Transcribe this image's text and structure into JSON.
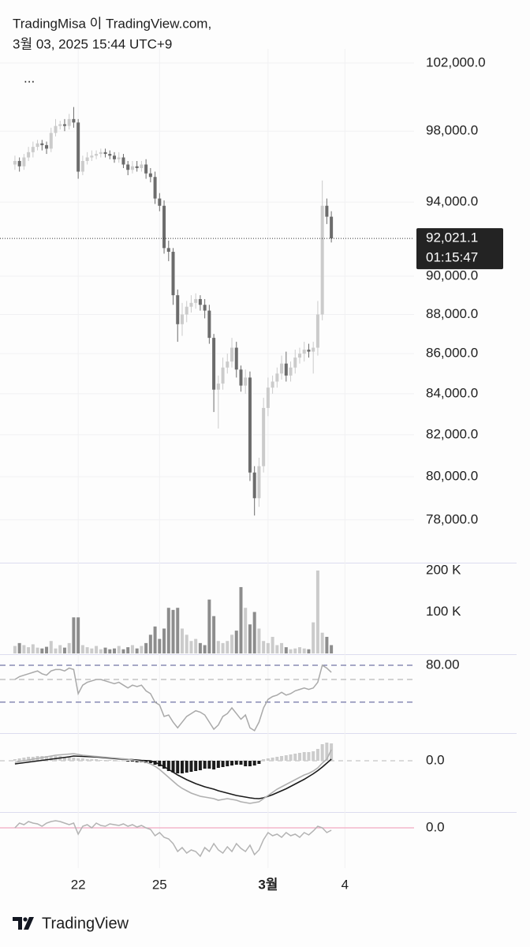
{
  "header": {
    "line1": "TradingMisa 이 TradingView.com,",
    "line2": "3월 03, 2025 15:44 UTC+9",
    "menu": "..."
  },
  "footer": {
    "logo": "TradingView"
  },
  "chart_data": [
    {
      "type": "candlestick",
      "log_scale": true,
      "up_color": "#cbcbcb",
      "down_color": "#6c6c6c",
      "grid_color": "#f1f1f3",
      "ylim": [
        76100,
        102850
      ],
      "yticks": [
        {
          "value": 78000,
          "label": "78,000.0"
        },
        {
          "value": 80000,
          "label": "80,000.0"
        },
        {
          "value": 82000,
          "label": "82,000.0"
        },
        {
          "value": 84000,
          "label": "84,000.0"
        },
        {
          "value": 86000,
          "label": "86,000.0"
        },
        {
          "value": 88000,
          "label": "88,000.0"
        },
        {
          "value": 90000,
          "label": "90,000.0"
        },
        {
          "value": 94000,
          "label": "94,000.0"
        },
        {
          "value": 98000,
          "label": "98,000.0"
        },
        {
          "value": 102000,
          "label": "102,000.0"
        }
      ],
      "xlim": [
        -3.3,
        88.3
      ],
      "xticks": [
        {
          "value": 14,
          "label": "22"
        },
        {
          "value": 32,
          "label": "25"
        },
        {
          "value": 56,
          "label": "3월"
        },
        {
          "value": 73,
          "label": "4"
        }
      ],
      "last_label": "92,021.1",
      "countdown": "01:15:47",
      "open": [
        96100,
        96300,
        96000,
        96500,
        96800,
        97100,
        97300,
        97200,
        97000,
        97900,
        98300,
        98400,
        98300,
        98700,
        98500,
        95700,
        96300,
        96500,
        96600,
        96700,
        96800,
        96700,
        96600,
        96400,
        96500,
        96100,
        95800,
        96000,
        95900,
        96100,
        95600,
        95400,
        94200,
        93800,
        91500,
        91300,
        89000,
        87500,
        88000,
        88400,
        88600,
        88800,
        88500,
        88200,
        86800,
        84200,
        84500,
        85300,
        85600,
        86300,
        85200,
        84400,
        84800,
        80200,
        79000,
        80500,
        83300,
        84300,
        84600,
        85000,
        85500,
        84900,
        85300,
        85800,
        86000,
        86200,
        86100,
        86300,
        88000,
        93800,
        93200
      ],
      "high": [
        96600,
        96500,
        96700,
        97100,
        97400,
        97500,
        97500,
        97400,
        98200,
        98700,
        98600,
        98700,
        99000,
        99400,
        98700,
        96600,
        96800,
        96900,
        96900,
        97000,
        97000,
        96900,
        96800,
        96800,
        96700,
        96300,
        96300,
        96300,
        96300,
        96400,
        95900,
        95700,
        94500,
        94100,
        91900,
        91500,
        89300,
        88600,
        88700,
        89000,
        89100,
        89000,
        88800,
        88500,
        87000,
        84900,
        85800,
        86000,
        86800,
        86600,
        85400,
        85200,
        85100,
        80500,
        80900,
        83800,
        84800,
        84900,
        85300,
        85900,
        86100,
        85600,
        86200,
        86300,
        86600,
        86500,
        86600,
        88700,
        95200,
        94200,
        93500
      ],
      "low": [
        95800,
        95700,
        95800,
        96300,
        96500,
        96900,
        96900,
        96700,
        96800,
        97700,
        98100,
        98000,
        98100,
        98200,
        95300,
        95500,
        96100,
        96300,
        96400,
        96500,
        96500,
        96400,
        96200,
        96200,
        95900,
        95500,
        95600,
        95700,
        95700,
        95300,
        95100,
        93900,
        93500,
        91200,
        90800,
        88500,
        86600,
        86900,
        87600,
        88100,
        88300,
        88200,
        87800,
        86500,
        83100,
        82300,
        84200,
        85000,
        85300,
        84800,
        84100,
        84000,
        79800,
        78200,
        78600,
        80200,
        82900,
        84000,
        84300,
        84700,
        84600,
        84600,
        85000,
        85500,
        85600,
        85800,
        85000,
        85900,
        87700,
        92800,
        91800
      ],
      "close": [
        96300,
        96000,
        96500,
        96800,
        97100,
        97300,
        97200,
        97000,
        97900,
        98300,
        98400,
        98300,
        98700,
        98500,
        95700,
        96300,
        96500,
        96600,
        96700,
        96800,
        96700,
        96600,
        96400,
        96500,
        96100,
        95800,
        96000,
        95900,
        96100,
        95600,
        95400,
        94200,
        93800,
        91500,
        91300,
        89000,
        87500,
        88000,
        88400,
        88600,
        88800,
        88500,
        88200,
        86800,
        84200,
        84500,
        85300,
        85600,
        86300,
        85200,
        84400,
        84800,
        80200,
        79000,
        80500,
        83300,
        84300,
        84600,
        85000,
        85500,
        84900,
        85300,
        85800,
        86000,
        86200,
        86100,
        86300,
        88000,
        93800,
        93200,
        92021.1
      ]
    },
    {
      "type": "bar",
      "ylim": [
        0,
        217000
      ],
      "yticks": [
        {
          "value": 100000,
          "label": "100 K"
        },
        {
          "value": 200000,
          "label": "200 K"
        }
      ],
      "values": [
        18000,
        25000,
        20000,
        15000,
        22000,
        14000,
        12000,
        16000,
        30000,
        12000,
        20000,
        14000,
        25000,
        87000,
        87000,
        20000,
        15000,
        12000,
        18000,
        10000,
        14000,
        10000,
        12000,
        18000,
        10000,
        15000,
        20000,
        12000,
        18000,
        25000,
        45000,
        65000,
        35000,
        60000,
        110000,
        105000,
        110000,
        60000,
        45000,
        30000,
        35000,
        25000,
        20000,
        130000,
        90000,
        30000,
        25000,
        30000,
        45000,
        55000,
        160000,
        110000,
        70000,
        100000,
        60000,
        30000,
        25000,
        40000,
        20000,
        25000,
        15000,
        10000,
        12000,
        15000,
        12000,
        10000,
        75000,
        200000,
        50000,
        40000,
        20000
      ]
    },
    {
      "type": "line",
      "color": "#a9a9a9",
      "ylim": [
        32.8,
        87.2
      ],
      "yticks": [
        {
          "value": 80,
          "label": "80.00"
        }
      ],
      "levels": [
        80,
        70,
        54
      ],
      "values": [
        70,
        72,
        73,
        74,
        75,
        76,
        74,
        73,
        76,
        77,
        77,
        76,
        78,
        77,
        60,
        66,
        68,
        69,
        70,
        70,
        69,
        68,
        67,
        68,
        66,
        64,
        66,
        65,
        66,
        62,
        60,
        54,
        52,
        44,
        45,
        40,
        36,
        40,
        44,
        46,
        48,
        47,
        45,
        40,
        35,
        38,
        44,
        46,
        50,
        46,
        42,
        45,
        36,
        34,
        40,
        50,
        56,
        58,
        59,
        61,
        59,
        60,
        62,
        63,
        64,
        63,
        64,
        68,
        80,
        78,
        75
      ]
    },
    {
      "type": "macd",
      "ylim": [
        -1280,
        680
      ],
      "grid_color": "#b8b8b8",
      "yticks": [
        {
          "value": 0,
          "label": "0.0"
        }
      ],
      "hist_colors": {
        "positive": "#cccccc",
        "negative": "#1c1c1c"
      },
      "histogram": [
        40,
        60,
        80,
        100,
        100,
        120,
        120,
        120,
        120,
        120,
        120,
        100,
        100,
        80,
        60,
        60,
        40,
        40,
        40,
        20,
        20,
        20,
        20,
        0,
        0,
        -20,
        -20,
        -40,
        -40,
        -60,
        -60,
        -100,
        -140,
        -200,
        -260,
        -300,
        -320,
        -320,
        -300,
        -280,
        -260,
        -240,
        -200,
        -200,
        -220,
        -180,
        -160,
        -140,
        -120,
        -100,
        -100,
        -140,
        -140,
        -120,
        -80,
        40,
        60,
        80,
        100,
        120,
        140,
        160,
        180,
        200,
        220,
        220,
        240,
        300,
        420,
        460,
        440
      ],
      "series": [
        {
          "color": "#1a1a1a",
          "values": [
            -80,
            -65,
            -50,
            -35,
            -20,
            -5,
            10,
            25,
            40,
            55,
            70,
            85,
            100,
            120,
            115,
            110,
            105,
            100,
            95,
            85,
            75,
            65,
            55,
            45,
            40,
            35,
            30,
            20,
            10,
            5,
            0,
            -40,
            -90,
            -150,
            -220,
            -290,
            -360,
            -420,
            -480,
            -530,
            -580,
            -620,
            -660,
            -690,
            -720,
            -760,
            -790,
            -820,
            -850,
            -880,
            -900,
            -920,
            -940,
            -955,
            -960,
            -940,
            -900,
            -860,
            -810,
            -760,
            -710,
            -650,
            -590,
            -530,
            -470,
            -400,
            -330,
            -250,
            -160,
            -60,
            40
          ]
        },
        {
          "color": "#b0b0b0",
          "values": [
            -40,
            -20,
            0,
            20,
            40,
            60,
            80,
            100,
            120,
            140,
            150,
            160,
            170,
            180,
            160,
            140,
            130,
            120,
            110,
            100,
            90,
            80,
            70,
            60,
            50,
            40,
            20,
            0,
            -20,
            -40,
            -80,
            -140,
            -220,
            -320,
            -420,
            -520,
            -620,
            -700,
            -760,
            -820,
            -860,
            -900,
            -920,
            -940,
            -960,
            -1000,
            -980,
            -960,
            -980,
            -1000,
            -1040,
            -1060,
            -1080,
            -1060,
            -1040,
            -960,
            -880,
            -800,
            -720,
            -660,
            -600,
            -540,
            -480,
            -420,
            -360,
            -320,
            -260,
            -180,
            -60,
            40,
            280
          ]
        }
      ]
    },
    {
      "type": "line",
      "color": "#b3b3b3",
      "grid_color": "#f3a9c2",
      "ylim": [
        -510,
        190
      ],
      "yticks": [
        {
          "value": 0,
          "label": "0.0"
        }
      ],
      "values": [
        0,
        60,
        40,
        80,
        60,
        50,
        20,
        60,
        80,
        90,
        80,
        60,
        40,
        60,
        -80,
        20,
        40,
        0,
        60,
        30,
        20,
        50,
        40,
        30,
        50,
        20,
        40,
        10,
        30,
        0,
        -20,
        -100,
        -60,
        -120,
        -140,
        -200,
        -300,
        -250,
        -320,
        -280,
        -300,
        -360,
        -250,
        -300,
        -200,
        -280,
        -320,
        -240,
        -300,
        -200,
        -260,
        -300,
        -220,
        -340,
        -280,
        -150,
        -60,
        -100,
        -80,
        -120,
        -60,
        -100,
        -80,
        -120,
        -60,
        -90,
        -40,
        20,
        0,
        -60,
        -30
      ]
    }
  ]
}
